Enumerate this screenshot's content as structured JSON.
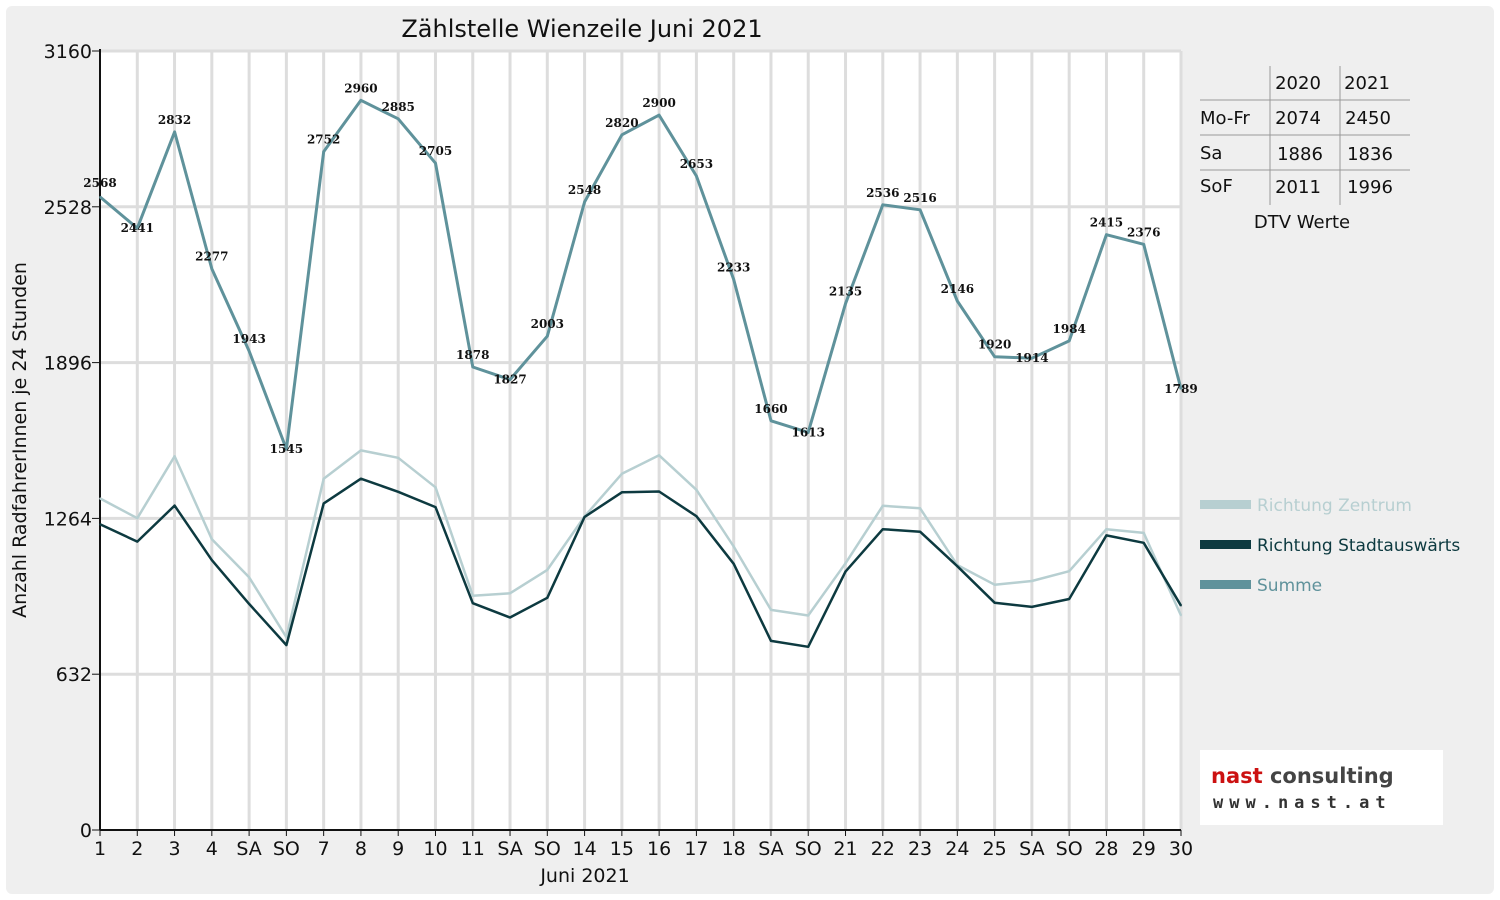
{
  "chart_data": {
    "type": "line",
    "title": "Zählstelle Wienzeile Juni 2021",
    "xlabel": "Juni 2021",
    "ylabel": "Anzahl RadfahrerInnen je 24 Stunden",
    "ylim": [
      0,
      3160
    ],
    "yticks": [
      "0",
      "632",
      "1264",
      "1896",
      "2528",
      "3160"
    ],
    "grid": true,
    "legend_position": "right",
    "categories": [
      "1",
      "2",
      "3",
      "4",
      "SA",
      "SO",
      "7",
      "8",
      "9",
      "10",
      "11",
      "SA",
      "SO",
      "14",
      "15",
      "16",
      "17",
      "18",
      "SA",
      "SO",
      "21",
      "22",
      "23",
      "24",
      "25",
      "SA",
      "SO",
      "28",
      "29",
      "30"
    ],
    "highlight_categories": [
      "3",
      "SO"
    ],
    "highlight_color": "#e01010",
    "series": [
      {
        "name": "Richtung Zentrum",
        "color": "#b7cfd1",
        "values": [
          1345,
          1265,
          1516,
          1180,
          1025,
          782,
          1425,
          1540,
          1510,
          1390,
          950,
          960,
          1055,
          1272,
          1445,
          1520,
          1380,
          1150,
          893,
          870,
          1082,
          1315,
          1305,
          1075,
          995,
          1010,
          1050,
          1220,
          1205,
          870
        ]
      },
      {
        "name": "Richtung Stadtauswärts",
        "color": "#0d3a40",
        "values": [
          1240,
          1170,
          1316,
          1095,
          917,
          750,
          1325,
          1425,
          1372,
          1310,
          920,
          862,
          942,
          1270,
          1370,
          1373,
          1273,
          1080,
          767,
          743,
          1048,
          1220,
          1210,
          1070,
          922,
          905,
          937,
          1195,
          1165,
          910
        ]
      },
      {
        "name": "Summe",
        "color": "#5f929b",
        "values": [
          2568,
          2441,
          2832,
          2277,
          1943,
          1545,
          2752,
          2960,
          2885,
          2705,
          1878,
          1827,
          2003,
          2548,
          2820,
          2900,
          2653,
          2233,
          1660,
          1613,
          2135,
          2536,
          2516,
          2146,
          1920,
          1914,
          1984,
          2415,
          2376,
          1789
        ],
        "labels": [
          "2568",
          "2441",
          "2832",
          "2277",
          "1943",
          "1545",
          "2752",
          "2960",
          "2885",
          "2705",
          "1878",
          "1827",
          "2003",
          "2548",
          "2820",
          "2900",
          "2653",
          "2233",
          "1660",
          "1613",
          "2135",
          "2536",
          "2516",
          "2146",
          "1920",
          "1914",
          "1984",
          "2415",
          "2376",
          "1789"
        ]
      }
    ]
  },
  "dtv_table": {
    "headers": [
      "",
      "2020",
      "2021"
    ],
    "rows": [
      [
        "Mo-Fr",
        "2074",
        "2450"
      ],
      [
        "Sa",
        "1886",
        "1836"
      ],
      [
        "SoF",
        "2011",
        "1996"
      ]
    ],
    "caption": "DTV Werte"
  },
  "logo": {
    "line1_part1": "nast",
    "line1_part2": " consulting",
    "line2": "www.nast.at",
    "color_part1": "#cc1111",
    "color_part2": "#444444"
  }
}
